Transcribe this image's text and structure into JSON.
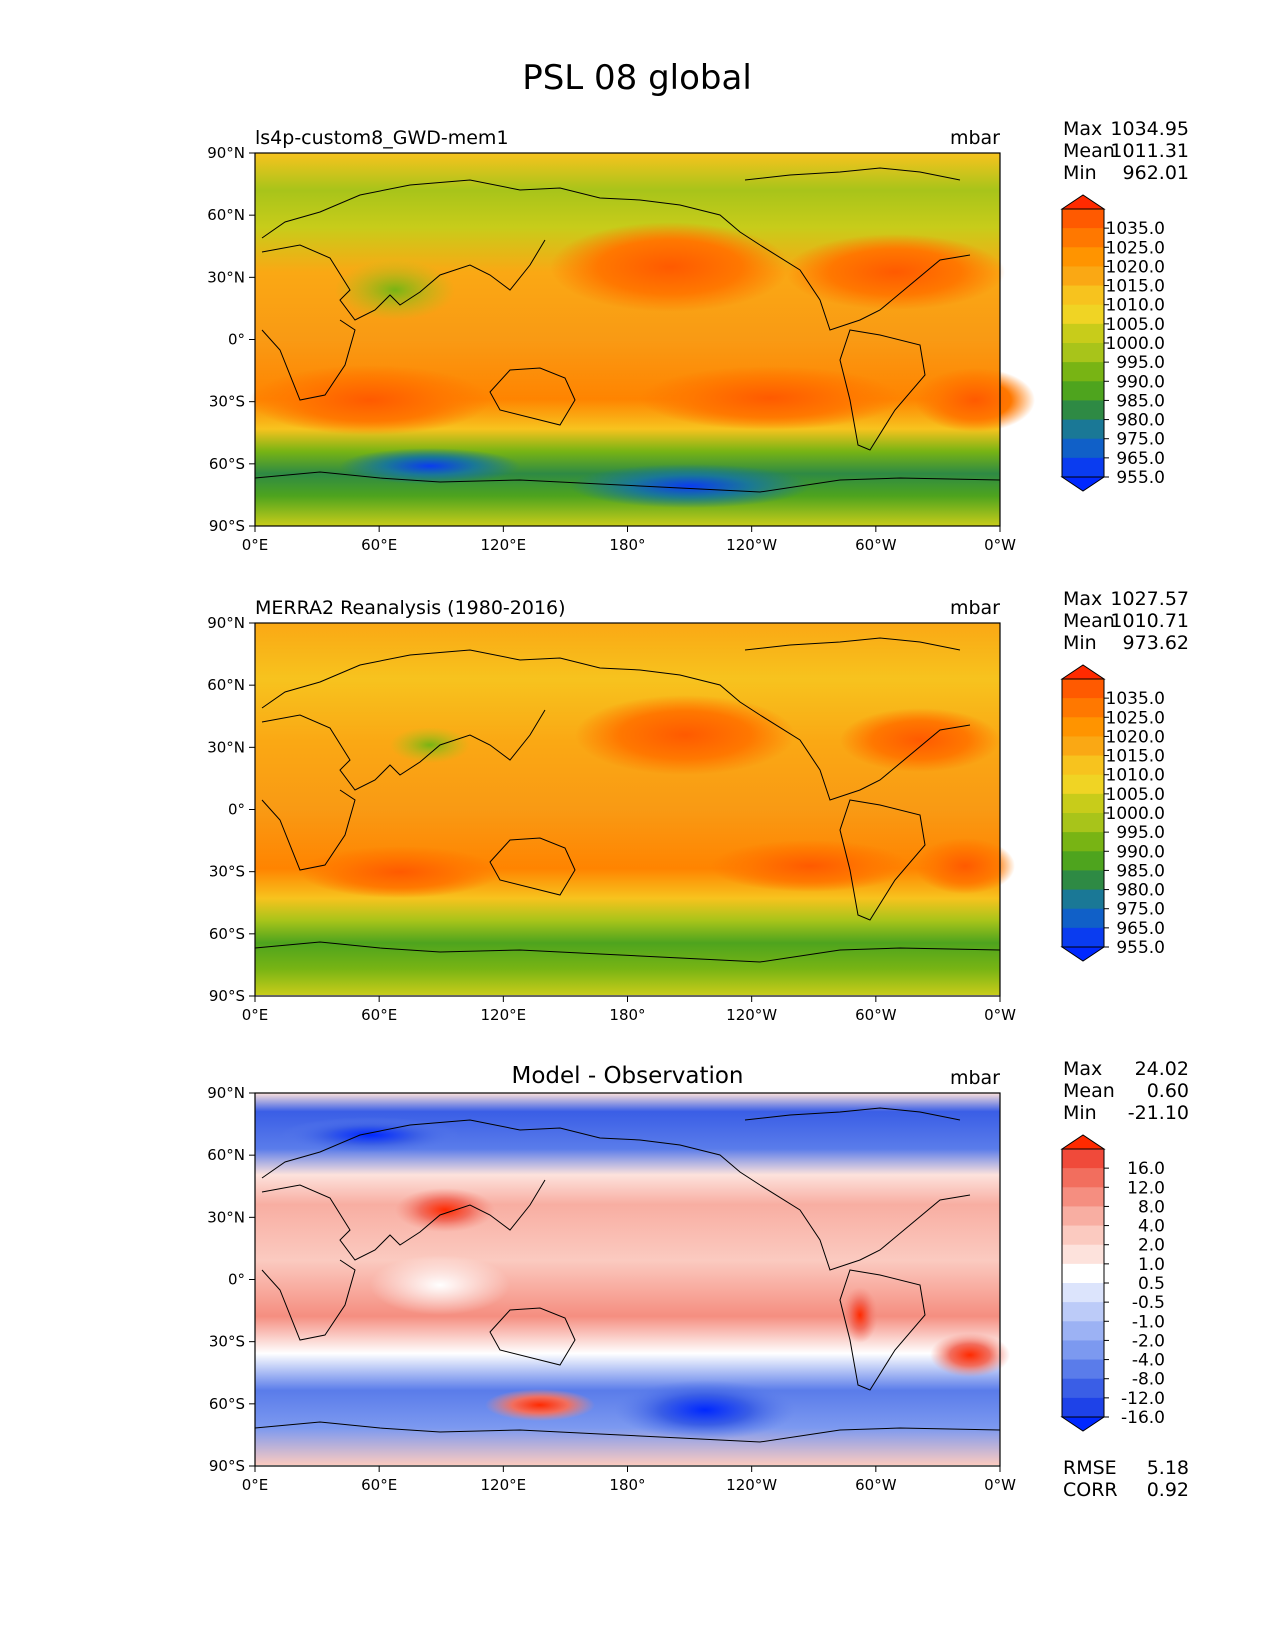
{
  "figure": {
    "title": "PSL 08 global"
  },
  "axes": {
    "lat_ticks": [
      "90°N",
      "60°N",
      "30°N",
      "0°",
      "30°S",
      "60°S",
      "90°S"
    ],
    "lon_ticks": [
      "0°E",
      "60°E",
      "120°E",
      "180°",
      "120°W",
      "60°W",
      "0°W"
    ]
  },
  "panels": [
    {
      "id": "model",
      "title_left": "ls4p-custom8_GWD-mem1",
      "title_center": "",
      "units": "mbar",
      "stats": [
        {
          "label": "Max",
          "value": "1034.95"
        },
        {
          "label": "Mean",
          "value": "1011.31"
        },
        {
          "label": "Min",
          "value": "962.01"
        }
      ],
      "colorbar": {
        "labels": [
          "1035.0",
          "1025.0",
          "1020.0",
          "1015.0",
          "1010.0",
          "1005.0",
          "1000.0",
          "995.0",
          "990.0",
          "985.0",
          "980.0",
          "975.0",
          "965.0",
          "955.0"
        ],
        "colors": [
          "#ff2a00",
          "#ff5a00",
          "#ff7800",
          "#ff9400",
          "#faa814",
          "#f7c31e",
          "#f0d424",
          "#c8cc1a",
          "#a8c41a",
          "#78b414",
          "#4ea41e",
          "#2e8a44",
          "#1a7896",
          "#1060c8",
          "#0a3cf0",
          "#0028ff"
        ]
      }
    },
    {
      "id": "obs",
      "title_left": "MERRA2 Reanalysis (1980-2016)",
      "title_center": "",
      "units": "mbar",
      "stats": [
        {
          "label": "Max",
          "value": "1027.57"
        },
        {
          "label": "Mean",
          "value": "1010.71"
        },
        {
          "label": "Min",
          "value": "973.62"
        }
      ],
      "colorbar": {
        "labels": [
          "1035.0",
          "1025.0",
          "1020.0",
          "1015.0",
          "1010.0",
          "1005.0",
          "1000.0",
          "995.0",
          "990.0",
          "985.0",
          "980.0",
          "975.0",
          "965.0",
          "955.0"
        ],
        "colors": [
          "#ff2a00",
          "#ff5a00",
          "#ff7800",
          "#ff9400",
          "#faa814",
          "#f7c31e",
          "#f0d424",
          "#c8cc1a",
          "#a8c41a",
          "#78b414",
          "#4ea41e",
          "#2e8a44",
          "#1a7896",
          "#1060c8",
          "#0a3cf0",
          "#0028ff"
        ]
      }
    },
    {
      "id": "diff",
      "title_left": "",
      "title_center": "Model - Observation",
      "units": "mbar",
      "stats": [
        {
          "label": "Max",
          "value": "24.02"
        },
        {
          "label": "Mean",
          "value": "0.60"
        },
        {
          "label": "Min",
          "value": "-21.10"
        }
      ],
      "extra_stats": [
        {
          "label": "RMSE",
          "value": "5.18"
        },
        {
          "label": "CORR",
          "value": "0.92"
        }
      ],
      "colorbar": {
        "labels": [
          "16.0",
          "12.0",
          "8.0",
          "4.0",
          "2.0",
          "1.0",
          "0.5",
          "-0.5",
          "-1.0",
          "-2.0",
          "-4.0",
          "-8.0",
          "-12.0",
          "-16.0"
        ],
        "colors": [
          "#ff2a00",
          "#f04a3a",
          "#f26e5e",
          "#f58e80",
          "#f8aea2",
          "#fbcac0",
          "#fde2dc",
          "#ffffff",
          "#dce4fc",
          "#bccbf8",
          "#9cb2f4",
          "#7c99f0",
          "#5a7cea",
          "#3a5ee6",
          "#1e42e8",
          "#0028ff"
        ]
      }
    }
  ]
}
